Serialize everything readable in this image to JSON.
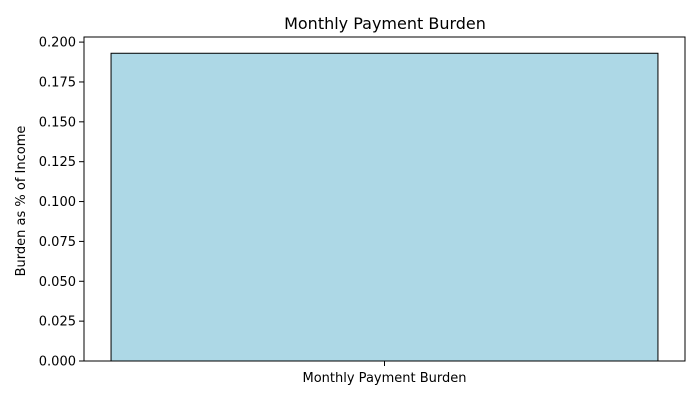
{
  "chart_data": {
    "type": "bar",
    "title": "Monthly Payment Burden",
    "xlabel": "",
    "ylabel": "Burden as % of Income",
    "categories": [
      "Monthly Payment Burden"
    ],
    "values": [
      0.193
    ],
    "ylim": [
      0,
      0.2032
    ],
    "yticks": [
      "0.000",
      "0.025",
      "0.050",
      "0.075",
      "0.100",
      "0.125",
      "0.150",
      "0.175",
      "0.200"
    ],
    "bar_color": "#add8e6",
    "bar_edge_color": "#000000",
    "grid": false,
    "legend": "none"
  }
}
